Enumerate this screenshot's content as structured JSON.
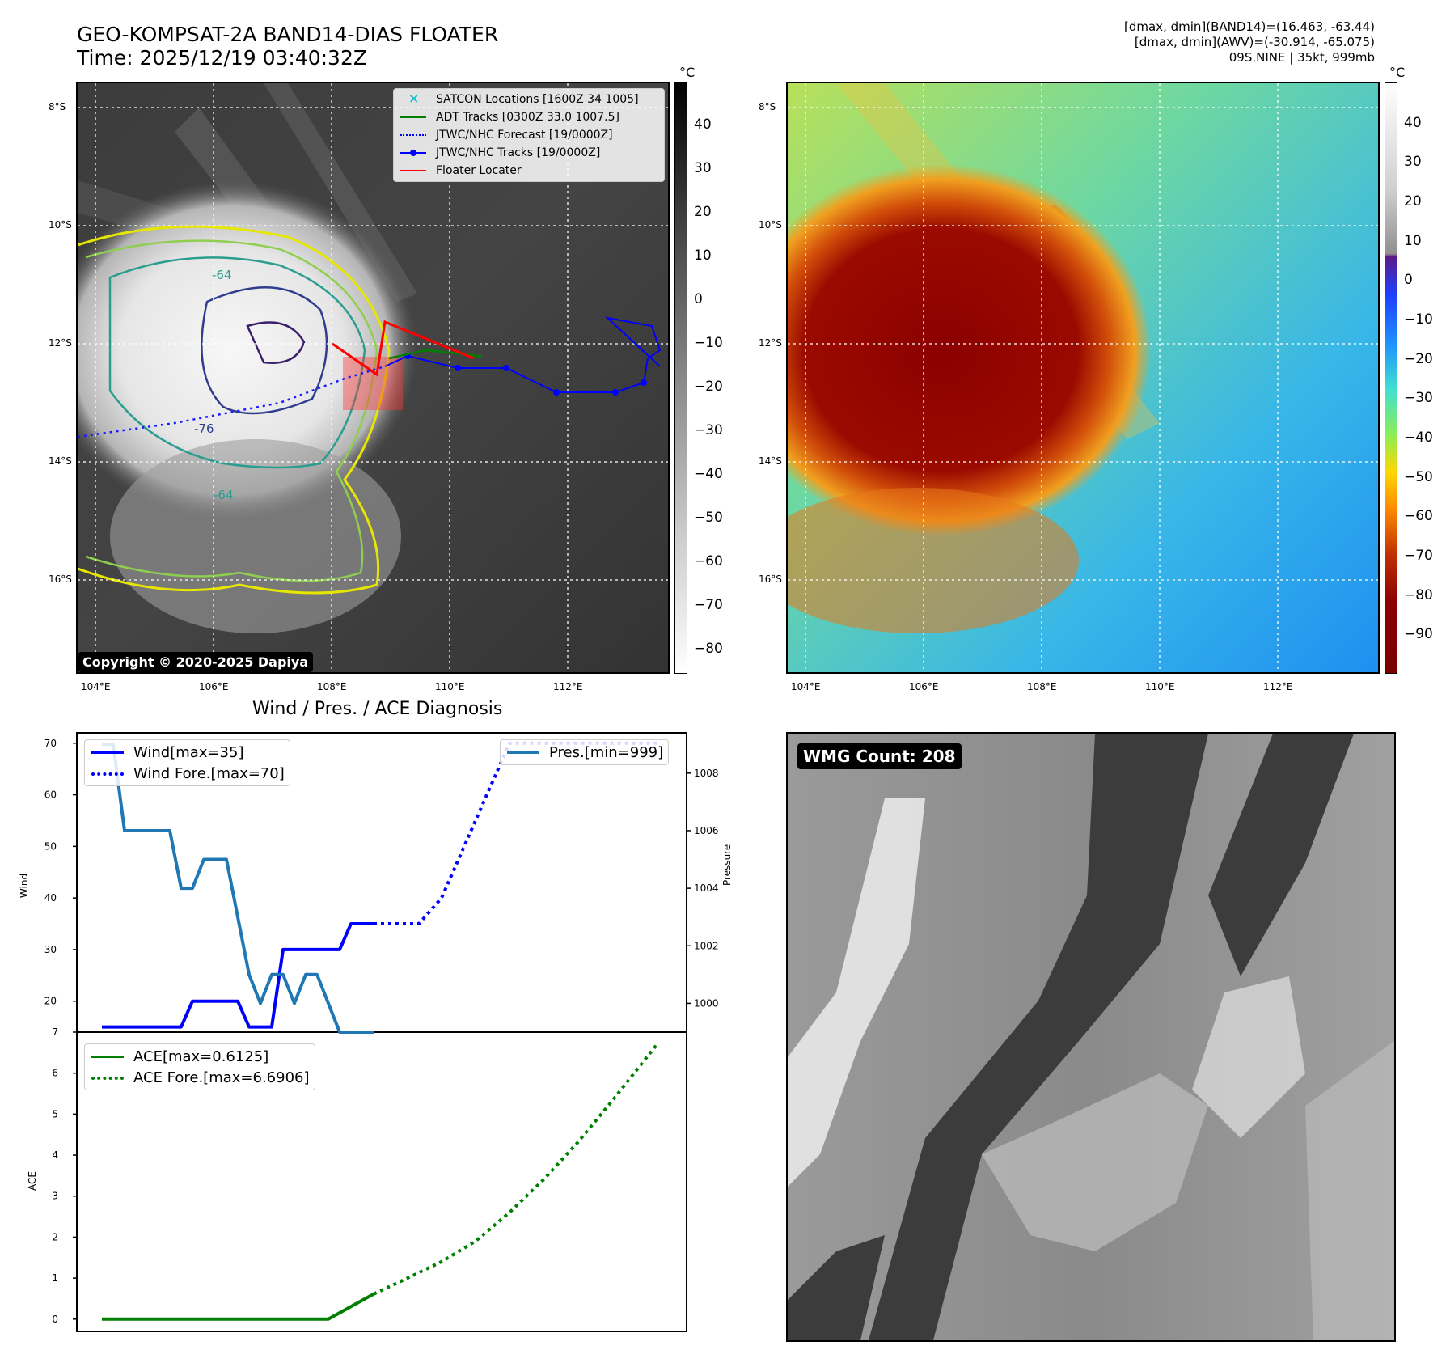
{
  "header": {
    "title_line1": "GEO-KOMPSAT-2A BAND14-DIAS FLOATER",
    "title_line2": "Time: 2025/12/19 03:40:32Z",
    "info_line1": "[dmax, dmin](BAND14)=(16.463, -63.44)",
    "info_line2": "[dmax, dmin](AWV)=(-30.914, -65.075)",
    "info_line3": "09S.NINE | 35kt, 999mb"
  },
  "map_axes": {
    "lat_labels": [
      "8°S",
      "10°S",
      "12°S",
      "14°S",
      "16°S"
    ],
    "lon_labels": [
      "104°E",
      "106°E",
      "108°E",
      "110°E",
      "112°E"
    ]
  },
  "ir_panel": {
    "legend": [
      {
        "label": "SATCON Locations [1600Z 34 1005]",
        "color": "#17becf",
        "style": "marker-x"
      },
      {
        "label": "ADT Tracks [0300Z 33.0 1007.5]",
        "color": "#008000",
        "style": "solid"
      },
      {
        "label": "JTWC/NHC Forecast [19/0000Z]",
        "color": "#0000ff",
        "style": "dotted"
      },
      {
        "label": "JTWC/NHC Tracks [19/0000Z]",
        "color": "#0000ff",
        "style": "solid-dot"
      },
      {
        "label": "Floater Locater",
        "color": "#ff0000",
        "style": "solid"
      }
    ],
    "copyright": "Copyright © 2020-2025 Dapiya",
    "contour_labels": [
      "-64",
      "-76",
      "-64"
    ],
    "colorbar_unit": "°C",
    "colorbar_ticks": [
      "40",
      "30",
      "20",
      "10",
      "0",
      "−10",
      "−20",
      "−30",
      "−40",
      "−50",
      "−60",
      "−70",
      "−80"
    ]
  },
  "awv_panel": {
    "colorbar_unit": "°C",
    "colorbar_ticks": [
      "40",
      "30",
      "20",
      "10",
      "0",
      "−10",
      "−20",
      "−30",
      "−40",
      "−50",
      "−60",
      "−70",
      "−80",
      "−90"
    ]
  },
  "diagnosis": {
    "title": "Wind / Pres. / ACE Diagnosis",
    "wind_ylabel": "Wind",
    "pres_ylabel": "Pressure",
    "ace_ylabel": "ACE",
    "wind_legend": [
      "Wind[max=35]",
      "Wind Fore.[max=70]"
    ],
    "pres_legend": [
      "Pres.[min=999]"
    ],
    "ace_legend": [
      "ACE[max=0.6125]",
      "ACE Fore.[max=6.6906]"
    ]
  },
  "wmg": {
    "label": "WMG Count: 208"
  },
  "colors": {
    "wind": "#0000ff",
    "pressure": "#1f77b4",
    "ace": "#008000",
    "floater": "#ff0000"
  },
  "chart_data": [
    {
      "type": "line",
      "title": "Wind / Pres. / ACE Diagnosis",
      "ylabel": "Wind",
      "y2label": "Pressure",
      "ylim": [
        14,
        72
      ],
      "y2lim": [
        999.0,
        1009.4
      ],
      "yticks": [
        20,
        30,
        40,
        50,
        60,
        70
      ],
      "y2ticks": [
        1000,
        1002,
        1004,
        1006,
        1008
      ],
      "series": [
        {
          "name": "Wind[max=35]",
          "axis": "left",
          "style": "solid",
          "color": "#0000ff",
          "x": [
            0,
            1,
            2,
            3,
            4,
            5,
            6,
            7,
            8,
            9,
            10,
            11,
            12,
            13,
            14,
            15,
            16,
            17,
            18,
            19,
            20,
            21,
            22,
            23,
            24
          ],
          "y": [
            15,
            15,
            15,
            15,
            15,
            15,
            15,
            15,
            20,
            20,
            20,
            20,
            20,
            15,
            15,
            15,
            30,
            30,
            30,
            30,
            30,
            30,
            35,
            35,
            35
          ]
        },
        {
          "name": "Wind Fore.[max=70]",
          "axis": "left",
          "style": "dotted",
          "color": "#0000ff",
          "x": [
            24,
            26,
            28,
            30,
            31,
            32,
            33,
            34,
            35,
            36,
            37,
            38,
            39,
            40,
            41,
            42,
            43,
            44,
            45,
            46,
            47,
            48,
            49
          ],
          "y": [
            35,
            35,
            35,
            40,
            45,
            50,
            55,
            60,
            65,
            70,
            70,
            70,
            70,
            70,
            70,
            70,
            70,
            70,
            70,
            70,
            70,
            70,
            70
          ]
        },
        {
          "name": "Pres.[min=999]",
          "axis": "right",
          "style": "solid",
          "color": "#1f77b4",
          "x": [
            0,
            1,
            2,
            3,
            4,
            5,
            6,
            7,
            8,
            9,
            10,
            11,
            12,
            13,
            14,
            15,
            16,
            17,
            18,
            19,
            20,
            21,
            22,
            23,
            24
          ],
          "y": [
            1009,
            1009,
            1006,
            1006,
            1006,
            1006,
            1006,
            1004,
            1004,
            1005,
            1005,
            1005,
            1003,
            1001,
            1000,
            1001,
            1001,
            1000,
            1001,
            1001,
            1000,
            999,
            999,
            999,
            999
          ]
        }
      ]
    },
    {
      "type": "line",
      "ylabel": "ACE",
      "ylim": [
        -0.3,
        7
      ],
      "yticks": [
        0,
        1,
        2,
        3,
        4,
        5,
        6,
        7
      ],
      "series": [
        {
          "name": "ACE[max=0.6125]",
          "style": "solid",
          "color": "#008000",
          "x": [
            0,
            5,
            10,
            15,
            20,
            24
          ],
          "y": [
            0,
            0,
            0,
            0,
            0.0,
            0.6125
          ]
        },
        {
          "name": "ACE Fore.[max=6.6906]",
          "style": "dotted",
          "color": "#008000",
          "x": [
            24,
            27,
            30,
            33,
            36,
            39,
            42,
            45,
            49
          ],
          "y": [
            0.6125,
            1.0,
            1.4,
            1.9,
            2.6,
            3.4,
            4.3,
            5.3,
            6.6906
          ]
        }
      ]
    }
  ]
}
